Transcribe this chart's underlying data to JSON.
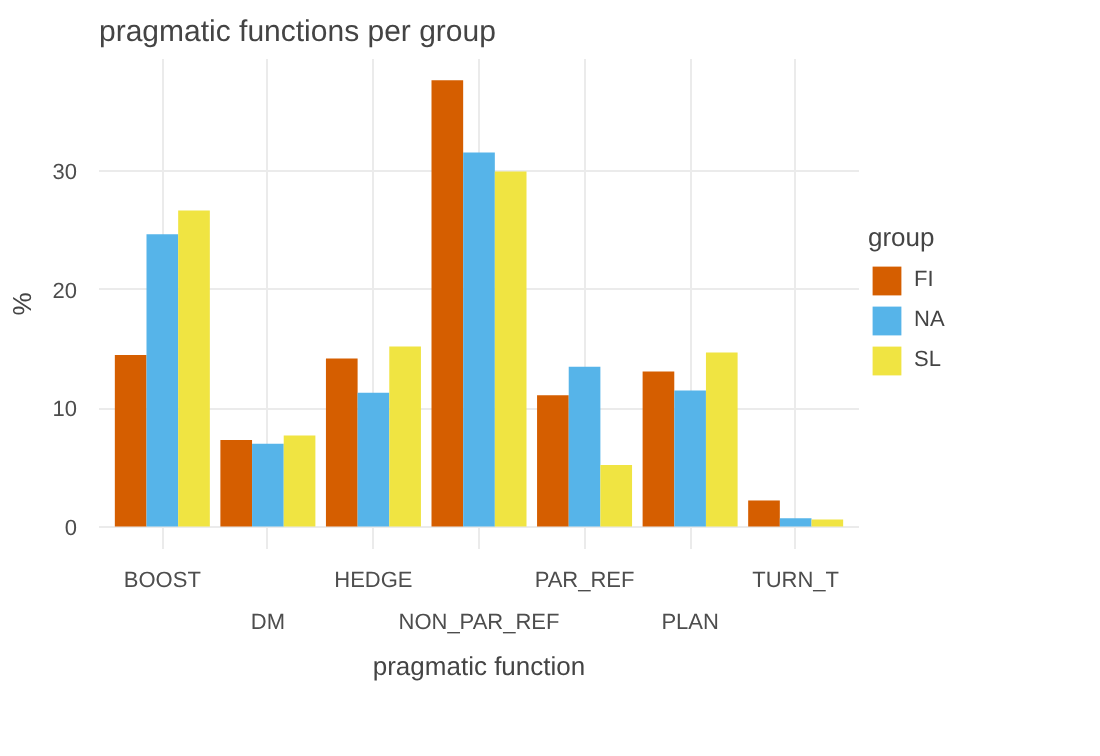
{
  "chart_data": {
    "type": "bar",
    "title": "pragmatic functions per group",
    "xlabel": "pragmatic function",
    "ylabel": "%",
    "legend_title": "group",
    "categories": [
      "BOOST",
      "DM",
      "HEDGE",
      "NON_PAR_REF",
      "PAR_REF",
      "PLAN",
      "TURN_T"
    ],
    "series": [
      {
        "name": "FI",
        "color": "#d55e00",
        "values": [
          14.5,
          7.3,
          14.2,
          37.7,
          11.1,
          13.1,
          2.2
        ]
      },
      {
        "name": "NA",
        "color": "#56b4e9",
        "values": [
          24.7,
          7.0,
          11.3,
          31.6,
          13.5,
          11.5,
          0.7
        ]
      },
      {
        "name": "SL",
        "color": "#f0e442",
        "values": [
          26.7,
          7.7,
          15.2,
          30.0,
          5.2,
          14.7,
          0.6
        ]
      }
    ],
    "ylim": [
      -1.9,
      39.5
    ],
    "yticks": [
      0,
      10,
      20,
      30
    ],
    "grid": true,
    "legend": "right"
  }
}
